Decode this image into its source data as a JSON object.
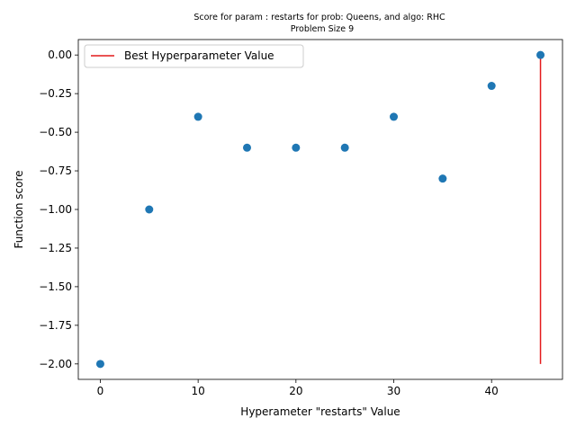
{
  "chart_data": {
    "type": "scatter",
    "title": "Score for param : restarts for prob: Queens, and algo: RHC",
    "subtitle": "Problem Size 9",
    "xlabel": "Hyperameter \"restarts\" Value",
    "ylabel": "Function score",
    "xlim": [
      -2.25,
      47.25
    ],
    "ylim": [
      -2.1,
      0.1
    ],
    "x_ticks": [
      0,
      10,
      20,
      30,
      40
    ],
    "x_tick_labels": [
      "0",
      "10",
      "20",
      "30",
      "40"
    ],
    "y_ticks": [
      0.0,
      -0.25,
      -0.5,
      -0.75,
      -1.0,
      -1.25,
      -1.5,
      -1.75,
      -2.0
    ],
    "y_tick_labels": [
      "0.00",
      "−0.25",
      "−0.50",
      "−0.75",
      "−1.00",
      "−1.25",
      "−1.50",
      "−1.75",
      "−2.00"
    ],
    "grid": false,
    "legend_position": "top-left",
    "series": [
      {
        "type": "scatter",
        "color": "#1f77b4",
        "x": [
          0,
          5,
          10,
          15,
          20,
          25,
          30,
          35,
          40,
          45
        ],
        "y": [
          -2.0,
          -1.0,
          -0.4,
          -0.6,
          -0.6,
          -0.6,
          -0.4,
          -0.8,
          -0.2,
          0.0
        ]
      },
      {
        "type": "vline",
        "name": "Best Hyperparameter Value",
        "color": "#e41a1c",
        "x": 45,
        "y_range": [
          -2.0,
          0.0
        ]
      }
    ]
  }
}
